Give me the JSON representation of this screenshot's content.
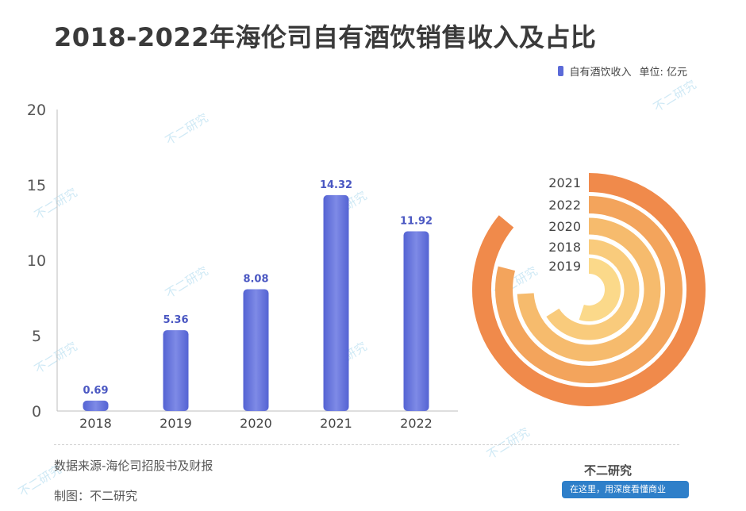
{
  "title": "2018-2022年海伦司自有酒饮销售收入及占比",
  "legend": {
    "series_label": "自有酒饮收入",
    "unit_label": "单位: 亿元"
  },
  "colors": {
    "bar": "#5b6ad8",
    "bar_light": "#7f8be6",
    "label": "#4a57c2",
    "ring_outer": "#f08a4b",
    "ring_inner": "#fbd98a"
  },
  "watermark_text": "不二研究",
  "footer": {
    "source": "数据来源-海伦司招股书及财报",
    "author": "制图：不二研究",
    "brand": "不二研究",
    "banner": "在这里，用深度看懂商业"
  },
  "chart_data": [
    {
      "type": "bar",
      "categories": [
        "2018",
        "2019",
        "2020",
        "2021",
        "2022"
      ],
      "values": [
        0.69,
        5.36,
        8.08,
        14.32,
        11.92
      ],
      "series": [
        {
          "name": "自有酒饮收入",
          "values": [
            0.69,
            5.36,
            8.08,
            14.32,
            11.92
          ]
        }
      ],
      "y_ticks": [
        0,
        5,
        10,
        15,
        20
      ],
      "ylim": [
        0,
        20
      ],
      "data_labels": [
        "0.69",
        "5.36",
        "8.08",
        "14.32",
        "11.92"
      ],
      "grid": false
    },
    {
      "type": "radial_bar",
      "categories": [
        "2021",
        "2022",
        "2020",
        "2018",
        "2019"
      ],
      "fractions": [
        0.86,
        0.79,
        0.74,
        0.66,
        0.55
      ]
    }
  ]
}
